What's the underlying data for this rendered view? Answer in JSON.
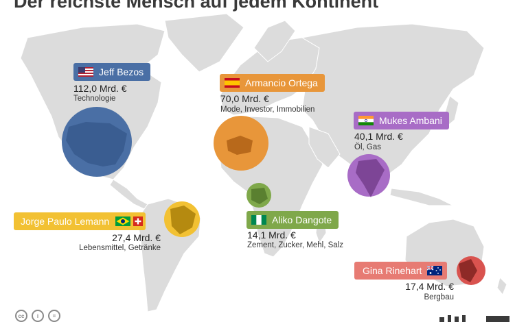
{
  "title": "Der reichste Mensch auf jedem Kontinent",
  "colors": {
    "land": "#dcdcdc",
    "bezos": "#4a6fa5",
    "ortega": "#e8963a",
    "ambani": "#a86cc6",
    "lemann": "#f2c133",
    "dangote": "#7fa84a",
    "rinehart": "#d9534f"
  },
  "people": [
    {
      "name": "Jeff Bezos",
      "amount": "112,0 Mrd. €",
      "sector": "Technologie",
      "flags": [
        "us-flag-icon"
      ],
      "value_bn": 112.0
    },
    {
      "name": "Armancio Ortega",
      "amount": "70,0 Mrd. €",
      "sector": "Mode, Investor, Immobilien",
      "flags": [
        "spain-flag-icon"
      ],
      "value_bn": 70.0
    },
    {
      "name": "Mukes Ambani",
      "amount": "40,1 Mrd. €",
      "sector": "Öl, Gas",
      "flags": [
        "india-flag-icon"
      ],
      "value_bn": 40.1
    },
    {
      "name": "Jorge Paulo Lemann",
      "amount": "27,4 Mrd. €",
      "sector": "Lebensmittel, Getränke",
      "flags": [
        "brazil-flag-icon",
        "switzerland-flag-icon"
      ],
      "value_bn": 27.4
    },
    {
      "name": "Aliko Dangote",
      "amount": "14,1 Mrd. €",
      "sector": "Zement, Zucker, Mehl, Salz",
      "flags": [
        "nigeria-flag-icon"
      ],
      "value_bn": 14.1
    },
    {
      "name": "Gina Rinehart",
      "amount": "17,4 Mrd. €",
      "sector": "Bergbau",
      "flags": [
        "australia-flag-icon"
      ],
      "value_bn": 17.4
    }
  ],
  "footer": {
    "icons": [
      "cc-icon",
      "by-icon",
      "nd-icon"
    ]
  }
}
